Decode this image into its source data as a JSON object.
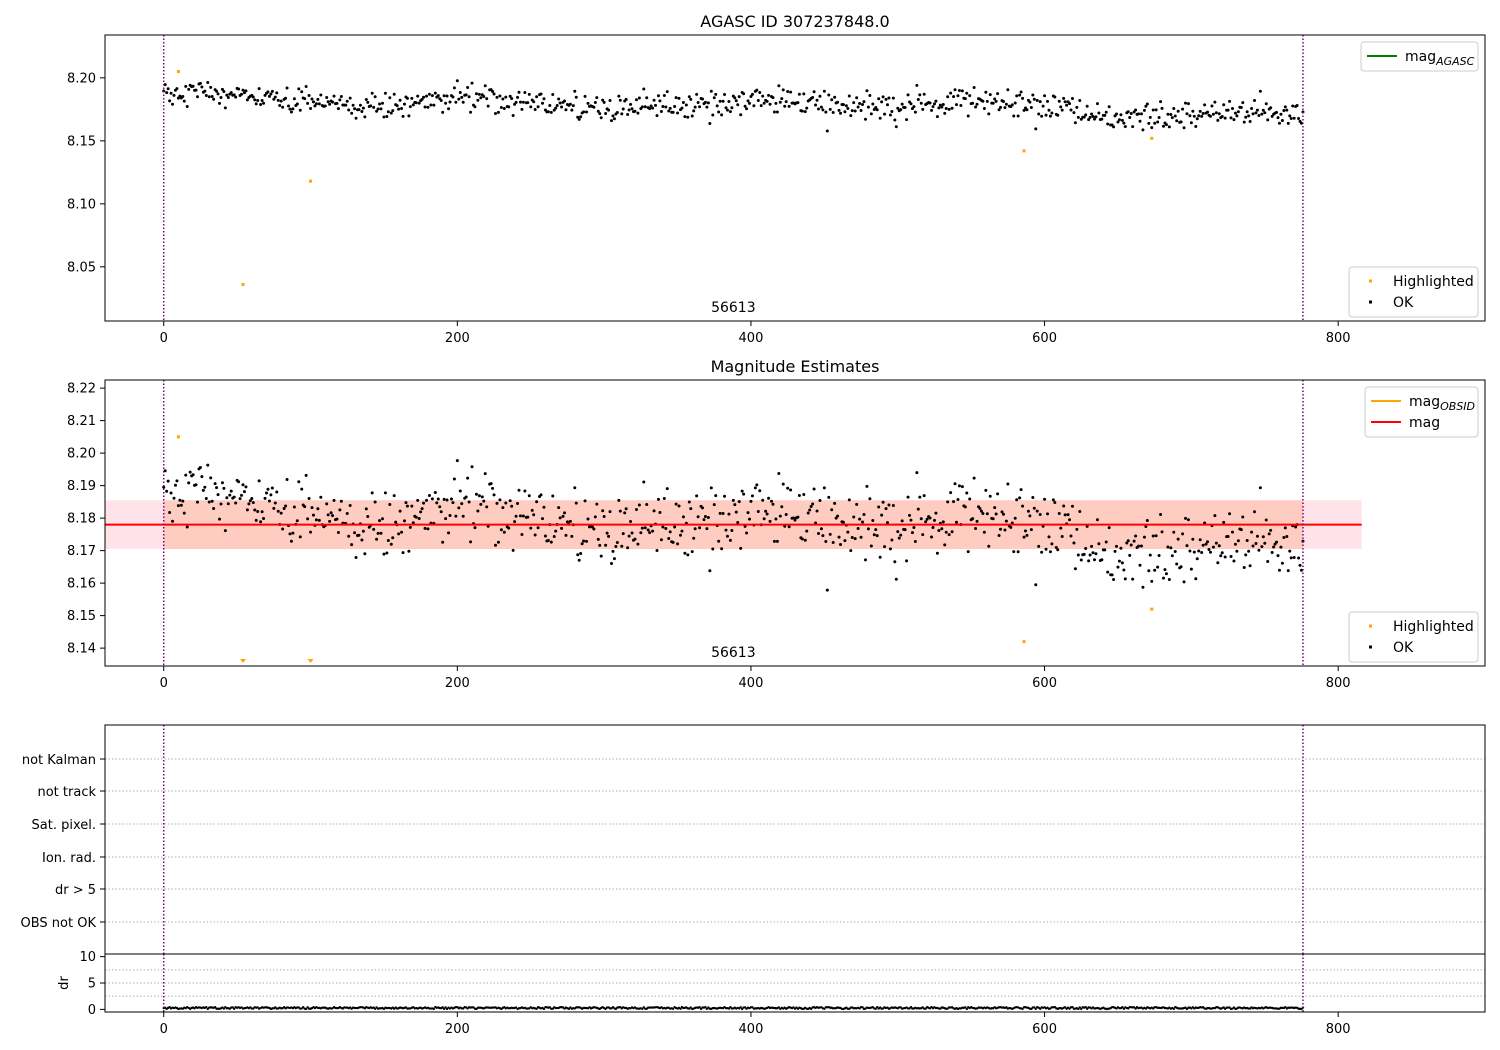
{
  "colors": {
    "ok": "#000000",
    "highlighted": "#ffa500",
    "vline": "#800080",
    "mag_line": "#ff0000",
    "mag_band": "#ffc0cb",
    "obsid_band": "#ffa07a",
    "agasc_line": "#008000",
    "obsid_line": "#ffa500",
    "flag_grid": "#b0b0b0"
  },
  "chart_data": [
    {
      "id": "agasc",
      "type": "scatter",
      "title": "AGASC ID 307237848.0",
      "xlim": [
        -40,
        900
      ],
      "ylim": [
        8.007,
        8.234
      ],
      "xticks": [
        0,
        200,
        400,
        600,
        800
      ],
      "yticks": [
        8.05,
        8.1,
        8.15,
        8.2
      ],
      "ytick_labels": [
        "8.05",
        "8.10",
        "8.15",
        "8.20"
      ],
      "vlines": [
        0,
        776
      ],
      "annotation": {
        "text": "56613",
        "x": 388
      },
      "legend_top": [
        {
          "label": "mag",
          "sub": "AGASC",
          "kind": "line",
          "color": "#008000"
        }
      ],
      "legend_bottom": [
        {
          "label": "Highlighted",
          "kind": "point",
          "color": "#ffa500"
        },
        {
          "label": "OK",
          "kind": "point",
          "color": "#000000"
        }
      ],
      "series": [
        {
          "name": "Highlighted",
          "color": "#ffa500",
          "points": [
            [
              10,
              8.205
            ],
            [
              54,
              8.036
            ],
            [
              100,
              8.118
            ],
            [
              586,
              8.142
            ],
            [
              673,
              8.152
            ]
          ]
        }
      ],
      "ok_trend": [
        [
          0,
          8.187
        ],
        [
          30,
          8.19
        ],
        [
          60,
          8.183
        ],
        [
          100,
          8.18
        ],
        [
          140,
          8.176
        ],
        [
          200,
          8.184
        ],
        [
          250,
          8.182
        ],
        [
          300,
          8.176
        ],
        [
          350,
          8.178
        ],
        [
          420,
          8.182
        ],
        [
          480,
          8.176
        ],
        [
          520,
          8.178
        ],
        [
          560,
          8.183
        ],
        [
          600,
          8.175
        ],
        [
          650,
          8.168
        ],
        [
          700,
          8.172
        ],
        [
          776,
          8.172
        ]
      ],
      "ok_n": 776,
      "ok_scatter": 0.007
    },
    {
      "id": "estimates",
      "type": "scatter",
      "title": "Magnitude Estimates",
      "xlim": [
        -40,
        900
      ],
      "ylim": [
        8.1345,
        8.2225
      ],
      "xticks": [
        0,
        200,
        400,
        600,
        800
      ],
      "yticks": [
        8.14,
        8.15,
        8.16,
        8.17,
        8.18,
        8.19,
        8.2,
        8.21,
        8.22
      ],
      "ytick_labels": [
        "8.14",
        "8.15",
        "8.16",
        "8.17",
        "8.18",
        "8.19",
        "8.20",
        "8.21",
        "8.22"
      ],
      "vlines": [
        0,
        776
      ],
      "annotation": {
        "text": "56613",
        "x": 388
      },
      "mag": {
        "value": 8.178,
        "band": [
          8.1705,
          8.1855
        ],
        "x_end": 816
      },
      "obsid": {
        "band": [
          8.1705,
          8.1855
        ],
        "x_start": 0,
        "x_end": 776
      },
      "legend_top": [
        {
          "label": "mag",
          "sub": "OBSID",
          "kind": "line",
          "color": "#ffa500"
        },
        {
          "label": "mag",
          "sub": "",
          "kind": "line",
          "color": "#ff0000"
        }
      ],
      "legend_bottom": [
        {
          "label": "Highlighted",
          "kind": "point",
          "color": "#ffa500"
        },
        {
          "label": "OK",
          "kind": "point",
          "color": "#000000"
        }
      ],
      "series": [
        {
          "name": "Highlighted",
          "color": "#ffa500",
          "points": [
            [
              10,
              8.205
            ],
            [
              586,
              8.142
            ],
            [
              673,
              8.152
            ]
          ]
        }
      ],
      "offscale_below": [
        54,
        100
      ],
      "ok_trend": [
        [
          0,
          8.187
        ],
        [
          30,
          8.19
        ],
        [
          60,
          8.183
        ],
        [
          100,
          8.18
        ],
        [
          140,
          8.176
        ],
        [
          200,
          8.184
        ],
        [
          250,
          8.182
        ],
        [
          300,
          8.176
        ],
        [
          350,
          8.178
        ],
        [
          420,
          8.182
        ],
        [
          480,
          8.176
        ],
        [
          520,
          8.178
        ],
        [
          560,
          8.183
        ],
        [
          600,
          8.175
        ],
        [
          650,
          8.168
        ],
        [
          700,
          8.172
        ],
        [
          776,
          8.172
        ]
      ],
      "ok_n": 776,
      "ok_scatter": 0.007
    },
    {
      "id": "flags",
      "type": "scatter",
      "xlim": [
        -40,
        900
      ],
      "categories": [
        "not Kalman",
        "not track",
        "Sat. pixel.",
        "Ion. rad.",
        "dr > 5",
        "OBS not OK"
      ],
      "vlines": [
        0,
        776
      ]
    },
    {
      "id": "dr",
      "type": "scatter",
      "ylabel": "dr",
      "xlim": [
        -40,
        900
      ],
      "ylim": [
        -0.5,
        10.5
      ],
      "xticks": [
        0,
        200,
        400,
        600,
        800
      ],
      "yticks": [
        0,
        5,
        10
      ],
      "ytick_labels": [
        "0",
        "5",
        "10"
      ],
      "vlines": [
        0,
        776
      ],
      "dr_level": 0.25,
      "dr_n": 776
    }
  ]
}
